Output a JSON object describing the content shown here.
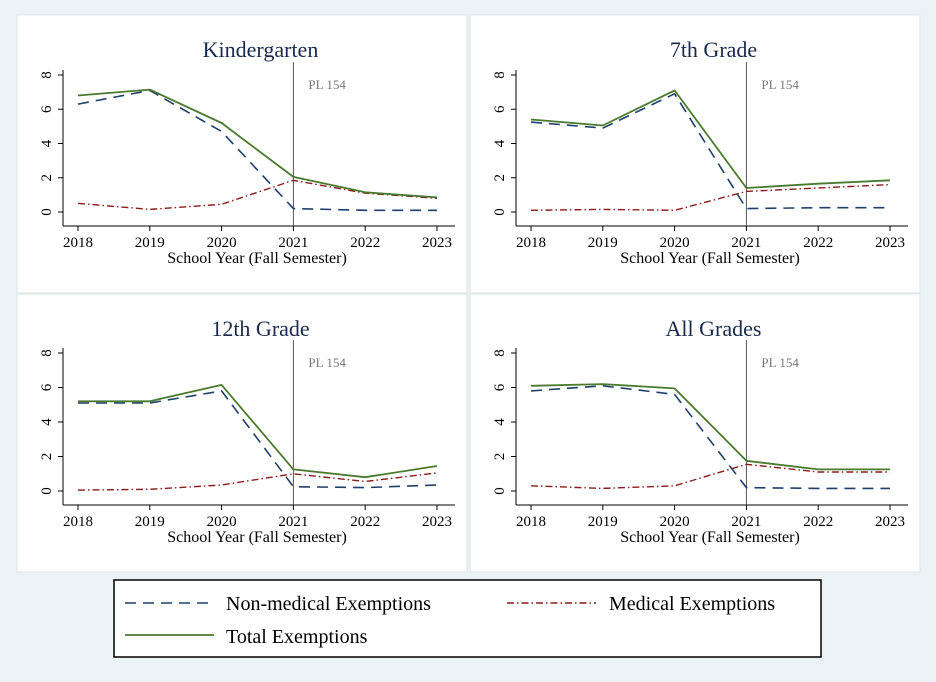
{
  "figure": {
    "legend": [
      {
        "series": "nonmedical",
        "label": "Non-medical Exemptions"
      },
      {
        "series": "medical",
        "label": "Medical Exemptions"
      },
      {
        "series": "total",
        "label": "Total Exemptions"
      }
    ]
  },
  "chart_data": [
    {
      "type": "line",
      "title": "Kindergarten",
      "xlabel": "School Year (Fall Semester)",
      "ylabel": "",
      "x": [
        2018,
        2019,
        2020,
        2021,
        2022,
        2023
      ],
      "ylim": [
        0,
        8
      ],
      "yticks": [
        0,
        2,
        4,
        6,
        8
      ],
      "annotation": {
        "x": 2021,
        "label": "PL 154"
      },
      "series": [
        {
          "key": "nonmedical",
          "name": "Non-medical Exemptions",
          "color": "#1f3f6b",
          "values": [
            6.3,
            7.1,
            4.7,
            0.2,
            0.1,
            0.1
          ]
        },
        {
          "key": "medical",
          "name": "Medical Exemptions",
          "color": "#8b1a1a",
          "values": [
            0.5,
            0.15,
            0.45,
            1.85,
            1.1,
            0.8
          ]
        },
        {
          "key": "total",
          "name": "Total Exemptions",
          "color": "#4a7a2e",
          "values": [
            6.8,
            7.15,
            5.2,
            2.05,
            1.15,
            0.85
          ]
        }
      ]
    },
    {
      "type": "line",
      "title": "7th Grade",
      "xlabel": "School Year (Fall Semester)",
      "ylabel": "",
      "x": [
        2018,
        2019,
        2020,
        2021,
        2022,
        2023
      ],
      "ylim": [
        0,
        8
      ],
      "yticks": [
        0,
        2,
        4,
        6,
        8
      ],
      "annotation": {
        "x": 2021,
        "label": "PL 154"
      },
      "series": [
        {
          "key": "nonmedical",
          "name": "Non-medical Exemptions",
          "color": "#1f3f6b",
          "values": [
            5.25,
            4.9,
            6.9,
            0.2,
            0.25,
            0.25
          ]
        },
        {
          "key": "medical",
          "name": "Medical Exemptions",
          "color": "#8b1a1a",
          "values": [
            0.1,
            0.15,
            0.1,
            1.2,
            1.4,
            1.6
          ]
        },
        {
          "key": "total",
          "name": "Total Exemptions",
          "color": "#4a7a2e",
          "values": [
            5.4,
            5.05,
            7.1,
            1.4,
            1.65,
            1.85
          ]
        }
      ]
    },
    {
      "type": "line",
      "title": "12th Grade",
      "xlabel": "School Year (Fall Semester)",
      "ylabel": "",
      "x": [
        2018,
        2019,
        2020,
        2021,
        2022,
        2023
      ],
      "ylim": [
        0,
        8
      ],
      "yticks": [
        0,
        2,
        4,
        6,
        8
      ],
      "annotation": {
        "x": 2021,
        "label": "PL 154"
      },
      "series": [
        {
          "key": "nonmedical",
          "name": "Non-medical Exemptions",
          "color": "#1f3f6b",
          "values": [
            5.1,
            5.1,
            5.8,
            0.25,
            0.2,
            0.35
          ]
        },
        {
          "key": "medical",
          "name": "Medical Exemptions",
          "color": "#8b1a1a",
          "values": [
            0.05,
            0.1,
            0.35,
            1.0,
            0.55,
            1.05
          ]
        },
        {
          "key": "total",
          "name": "Total Exemptions",
          "color": "#4a7a2e",
          "values": [
            5.2,
            5.2,
            6.15,
            1.25,
            0.8,
            1.45
          ]
        }
      ]
    },
    {
      "type": "line",
      "title": "All Grades",
      "xlabel": "School Year (Fall Semester)",
      "ylabel": "",
      "x": [
        2018,
        2019,
        2020,
        2021,
        2022,
        2023
      ],
      "ylim": [
        0,
        8
      ],
      "yticks": [
        0,
        2,
        4,
        6,
        8
      ],
      "annotation": {
        "x": 2021,
        "label": "PL 154"
      },
      "series": [
        {
          "key": "nonmedical",
          "name": "Non-medical Exemptions",
          "color": "#1f3f6b",
          "values": [
            5.8,
            6.1,
            5.6,
            0.2,
            0.15,
            0.15
          ]
        },
        {
          "key": "medical",
          "name": "Medical Exemptions",
          "color": "#8b1a1a",
          "values": [
            0.3,
            0.15,
            0.3,
            1.55,
            1.1,
            1.1
          ]
        },
        {
          "key": "total",
          "name": "Total Exemptions",
          "color": "#4a7a2e",
          "values": [
            6.1,
            6.2,
            5.95,
            1.75,
            1.25,
            1.25
          ]
        }
      ]
    }
  ]
}
